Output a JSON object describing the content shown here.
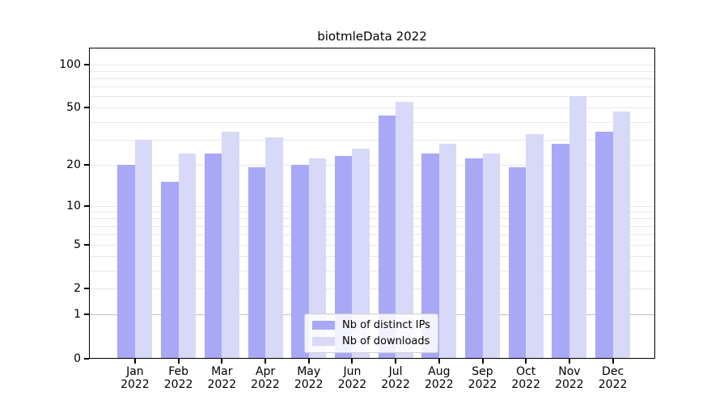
{
  "title": "biotmleData 2022",
  "colors": {
    "ips_bar": "#a8a8f6",
    "downloads_bar": "#d8d8f9",
    "grid": "#e8e8e8",
    "grid_unit_line": "#bfbfbf",
    "axis": "#000000",
    "text": "#000000",
    "legend_border": "#cfcfcf",
    "background": "#ffffff"
  },
  "legend": {
    "items": [
      {
        "label": "Nb of distinct IPs",
        "color_key": "ips_bar"
      },
      {
        "label": "Nb of downloads",
        "color_key": "downloads_bar"
      }
    ]
  },
  "chart_data": {
    "type": "bar",
    "title": "biotmleData 2022",
    "xlabel": "",
    "ylabel": "",
    "categories": [
      "Jan 2022",
      "Feb 2022",
      "Mar 2022",
      "Apr 2022",
      "May 2022",
      "Jun 2022",
      "Jul 2022",
      "Aug 2022",
      "Sep 2022",
      "Oct 2022",
      "Nov 2022",
      "Dec 2022"
    ],
    "series": [
      {
        "name": "Nb of distinct IPs",
        "color": "#a8a8f6",
        "values": [
          20,
          15,
          24,
          19,
          20,
          23,
          44,
          24,
          22,
          19,
          28,
          34
        ]
      },
      {
        "name": "Nb of downloads",
        "color": "#d8d8f9",
        "values": [
          30,
          24,
          34,
          31,
          22,
          26,
          55,
          28,
          24,
          33,
          60,
          47
        ]
      }
    ],
    "yscale": "log1p",
    "yticks": [
      0,
      1,
      2,
      5,
      10,
      20,
      50,
      100
    ],
    "yticks_minor": [
      3,
      4,
      6,
      7,
      8,
      9,
      30,
      40,
      60,
      70,
      80,
      90
    ],
    "ylim": [
      0,
      130
    ],
    "grid": "horizontal",
    "legend_position": "lower center"
  }
}
